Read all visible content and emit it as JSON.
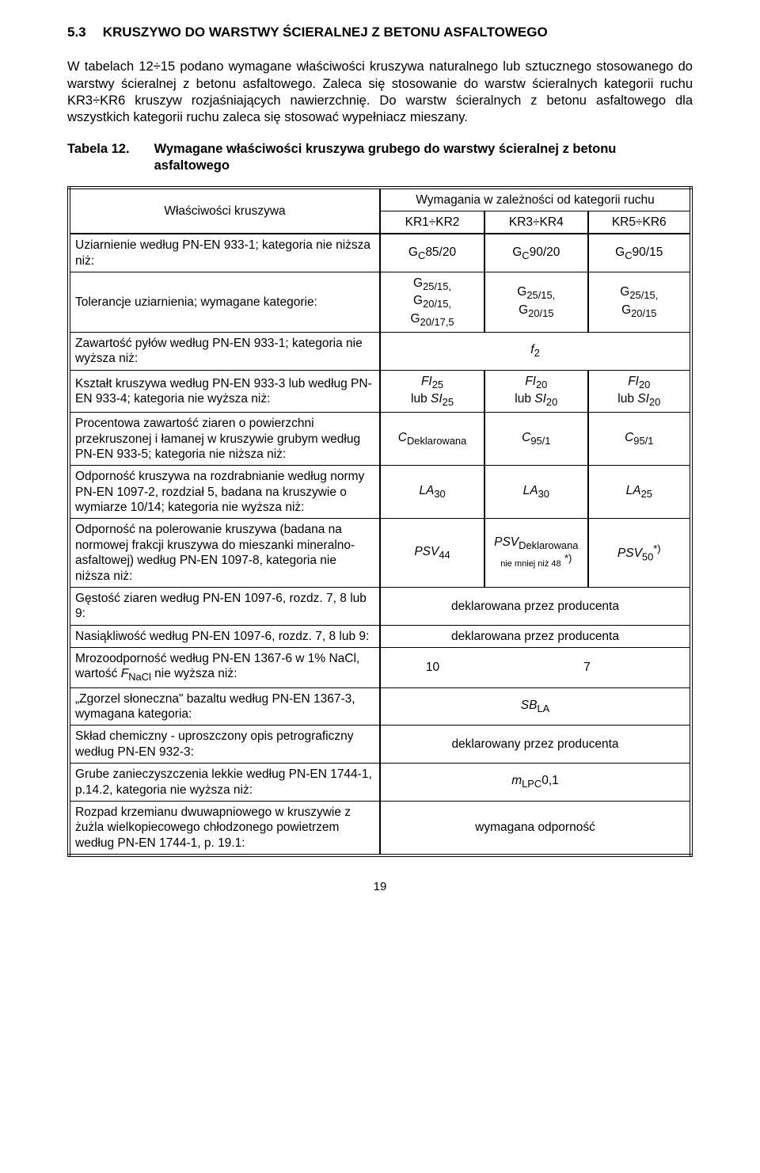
{
  "section": {
    "number": "5.3",
    "title": "KRUSZYWO DO WARSTWY ŚCIERALNEJ Z BETONU ASFALTOWEGO"
  },
  "p1": "W tabelach 12÷15 podano wymagane właściwości kruszywa naturalnego lub sztucznego stosowanego do warstwy ścieralnej z betonu asfaltowego. Zaleca się stosowanie do warstw ścieralnych kategorii ruchu KR3÷KR6 kruszyw rozjaśniających nawierzchnię. Do warstw ścieralnych z betonu asfaltowego dla wszystkich kategorii ruchu zaleca się stosować wypełniacz mieszany.",
  "tableTitle": {
    "label": "Tabela 12.",
    "text": "Wymagane właściwości kruszywa grubego do warstwy ścieralnej z betonu asfaltowego"
  },
  "header": {
    "col1": "Właściwości kruszywa",
    "topline": "Wymagania w zależności od kategorii ruchu",
    "c1": "KR1÷KR2",
    "c2": "KR3÷KR4",
    "c3": "KR5÷KR6"
  },
  "rows": [
    {
      "prop": "Uziarnienie według PN-EN 933-1; kategoria nie niższa niż:",
      "c1": "G<sub>C</sub>85/20",
      "c2": "G<sub>C</sub>90/20",
      "c3": "G<sub>C</sub>90/15"
    },
    {
      "prop": "Tolerancje uziarnienia; wymagane kategorie:",
      "c1": "G<sub>25/15,</sub><br>G<sub>20/15,</sub><br>G<sub>20/17,5</sub>",
      "c2": "G<sub>25/15,</sub><br>G<sub>20/15</sub>",
      "c3": "G<sub>25/15,</sub><br>G<sub>20/15</sub>"
    },
    {
      "prop": "Zawartość pyłów według PN-EN 933-1; kategoria nie wyższa niż:",
      "span": true,
      "all": "<i>f</i><sub>2</sub>"
    },
    {
      "prop": "Kształt kruszywa według PN-EN 933-3 lub według PN-EN 933-4; kategoria nie wyższa niż:",
      "c1": "<i>FI</i><sub>25</sub><br>lub <i>SI</i><sub>25</sub>",
      "c2": "<i>FI</i><sub>20</sub><br>lub <i>SI</i><sub>20</sub>",
      "c3": "<i>FI</i><sub>20</sub><br>lub <i>SI</i><sub>20</sub>"
    },
    {
      "prop": "Procentowa zawartość ziaren o powierzchni przekruszonej i łamanej w kruszywie grubym według PN-EN 933-5; kategoria nie niższa niż:",
      "c1": "<i>C</i><sub>Deklarowana</sub>",
      "c2": "<i>C</i><sub>95/1</sub>",
      "c3": "<i>C</i><sub>95/1</sub>"
    },
    {
      "prop": "Odporność kruszywa na rozdrabnianie według normy PN-EN 1097-2, rozdział 5, badana na kruszywie o wymiarze 10/14; kategoria nie wyższa niż:",
      "c1": "<i>LA</i><sub>30</sub>",
      "c2": "<i>LA</i><sub>30</sub>",
      "c3": "<i>LA</i><sub>25</sub>"
    },
    {
      "prop": "Odporność na polerowanie kruszywa (badana na normowej frakcji kruszywa do mieszanki mineralno-asfaltowej) według PN-EN 1097-8, kategoria nie niższa niż:",
      "c1": "<i>PSV</i><sub>44</sub>",
      "c2": "<i>PSV</i><sub>Deklarowana</sub><br><span style=\"font-size:11px\">nie mniej niż 48</span> <sup>*)</sup>",
      "c3": "<i>PSV</i><sub>50</sub><sup>*)</sup>"
    },
    {
      "prop": "Gęstość ziaren według PN-EN 1097-6, rozdz. 7, 8 lub 9:",
      "span": true,
      "all": "deklarowana przez producenta"
    },
    {
      "prop": "Nasiąkliwość według PN-EN 1097-6, rozdz. 7, 8 lub 9:",
      "span": true,
      "all": "deklarowana przez producenta"
    },
    {
      "prop": "Mrozoodporność według PN-EN 1367-6 w 1% NaCl, wartość <i>F</i><sub>NaCl</sub> nie wyższa niż:",
      "spanType": "twoOne",
      "left": "10",
      "right": "7"
    },
    {
      "prop": "„Zgorzel słoneczna\" bazaltu według PN-EN 1367-3, wymagana kategoria:",
      "span": true,
      "all": "<i>SB</i><sub>LA</sub>"
    },
    {
      "prop": "Skład chemiczny - uproszczony opis petrograficzny według PN-EN 932-3:",
      "span": true,
      "all": "deklarowany przez producenta"
    },
    {
      "prop": "Grube zanieczyszczenia lekkie według PN-EN 1744-1, p.14.2, kategoria nie wyższa niż:",
      "span": true,
      "all": "<i>m</i><sub>LPC</sub>0,1"
    },
    {
      "prop": "Rozpad krzemianu dwuwapniowego w kruszywie z żużla wielkopiecowego chłodzonego powietrzem według PN-EN 1744-1, p. 19.1:",
      "span": true,
      "all": "wymagana odporność"
    }
  ],
  "pageNum": "19"
}
